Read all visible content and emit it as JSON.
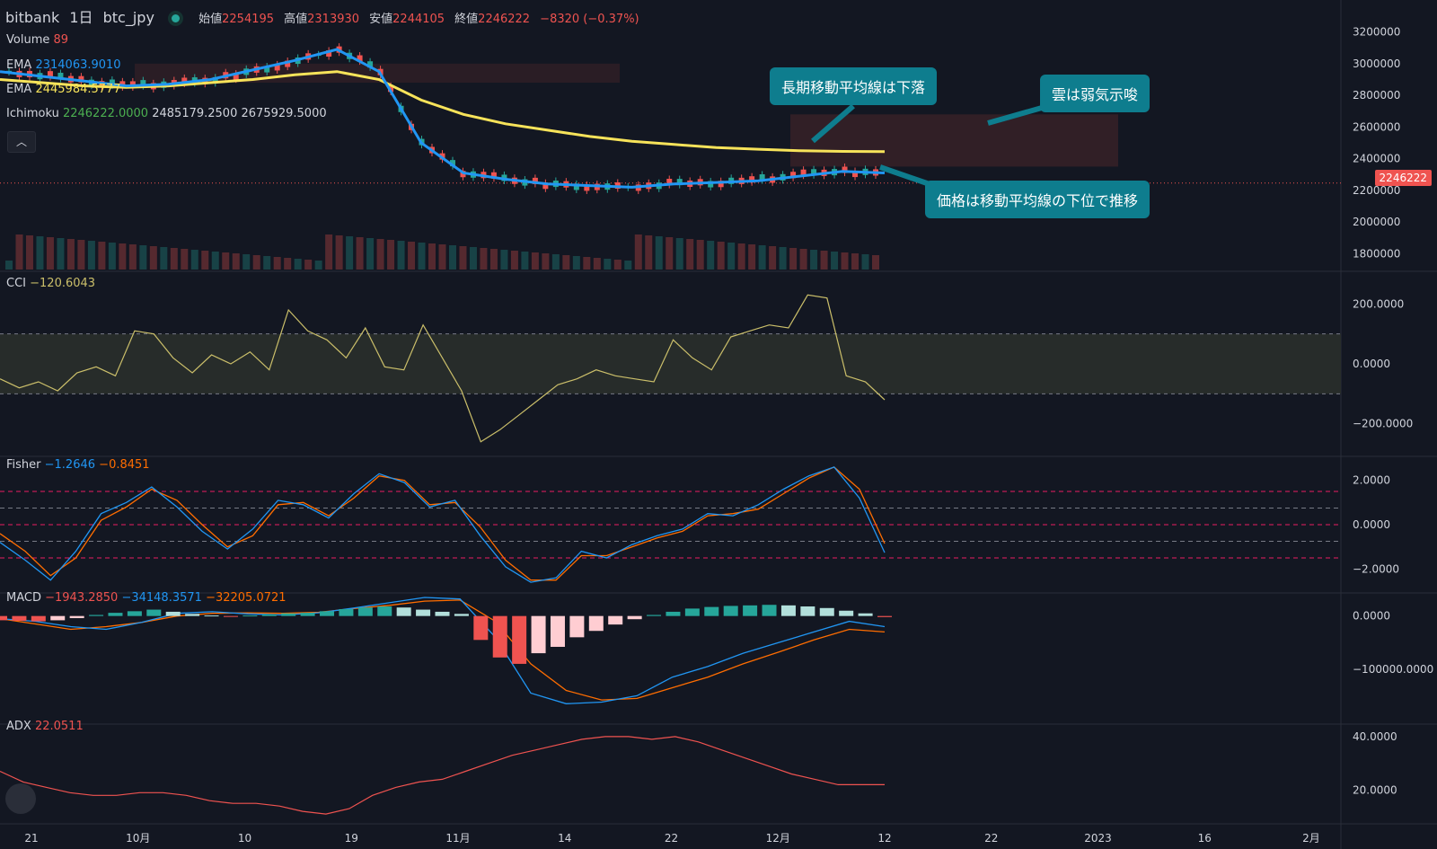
{
  "header": {
    "exchange": "bitbank",
    "interval": "1日",
    "symbol": "btc_jpy",
    "open_label": "始値",
    "open": "2254195",
    "high_label": "高値",
    "high": "2313930",
    "low_label": "安値",
    "low": "2244105",
    "close_label": "終値",
    "close": "2246222",
    "change": "−8320 (−0.37%)"
  },
  "legend": {
    "volume_label": "Volume",
    "volume": "89",
    "ema1_label": "EMA",
    "ema1": "2314063.9010",
    "ema2_label": "EMA",
    "ema2": "2445984.5777",
    "ichimoku_label": "Ichimoku",
    "ichi1": "2246222.0000",
    "ichi2": "2485179.2500",
    "ichi3": "2675929.5000",
    "cci_label": "CCI",
    "cci": "−120.6043",
    "fisher_label": "Fisher",
    "fisher1": "−1.2646",
    "fisher2": "−0.8451",
    "macd_label": "MACD",
    "macd1": "−1943.2850",
    "macd2": "−34148.3571",
    "macd3": "−32205.0721",
    "adx_label": "ADX",
    "adx": "22.0511"
  },
  "callouts": {
    "long_ma": "長期移動平均線は下落",
    "cloud": "雲は弱気示唆",
    "below": "価格は移動平均線の下位で推移"
  },
  "price_tag": "2246222",
  "collapse_icon": "chevron-up-icon",
  "colors": {
    "bg": "#131722",
    "up": "#26a69a",
    "down": "#ef5350",
    "ema_short": "#2196f3",
    "ema_long": "#f7e35a",
    "cloud": "#3a2228",
    "callout": "#0e7d8e",
    "cci": "#cbbf6a",
    "fisher_a": "#2196f3",
    "fisher_b": "#ff6d00",
    "adx": "#ef5350"
  },
  "chart_data": [
    {
      "type": "line",
      "title": "bitbank 1日 btc_jpy",
      "ylim": [
        1700000,
        3300000
      ],
      "y_ticks": [
        "3200000",
        "3000000",
        "2800000",
        "2600000",
        "2400000",
        "2200000",
        "2000000",
        "1800000"
      ],
      "x_ticks": [
        "21",
        "10月",
        "10",
        "19",
        "11月",
        "14",
        "22",
        "12月",
        "12",
        "22",
        "2023",
        "16",
        "2月"
      ],
      "series": [
        {
          "name": "EMA",
          "values": [
            2950000,
            2920000,
            2890000,
            2860000,
            2870000,
            2900000,
            2960000,
            3020000,
            3090000,
            2950000,
            2500000,
            2310000,
            2270000,
            2240000,
            2230000,
            2220000,
            2240000,
            2250000,
            2260000,
            2290000,
            2320000,
            2310000
          ]
        },
        {
          "name": "EMA",
          "values": [
            2900000,
            2880000,
            2860000,
            2850000,
            2860000,
            2880000,
            2900000,
            2930000,
            2950000,
            2900000,
            2770000,
            2680000,
            2620000,
            2580000,
            2540000,
            2510000,
            2490000,
            2470000,
            2460000,
            2450000,
            2446000,
            2445000
          ]
        }
      ]
    },
    {
      "type": "line",
      "title": "CCI",
      "ylim": [
        -300,
        300
      ],
      "y_ticks": [
        "200.0000",
        "0.0000",
        "−200.0000"
      ],
      "series": [
        {
          "name": "CCI",
          "values": [
            -50,
            -80,
            -60,
            -90,
            -30,
            -10,
            -40,
            110,
            100,
            20,
            -30,
            30,
            0,
            40,
            -20,
            180,
            110,
            80,
            20,
            120,
            -10,
            -20,
            130,
            20,
            -90,
            -260,
            -220,
            -170,
            -120,
            -70,
            -50,
            -20,
            -40,
            -50,
            -60,
            80,
            20,
            -20,
            90,
            110,
            130,
            120,
            230,
            220,
            -40,
            -60,
            -120
          ]
        }
      ]
    },
    {
      "type": "line",
      "title": "Fisher",
      "ylim": [
        -3,
        3
      ],
      "y_ticks": [
        "2.0000",
        "0.0000",
        "−2.0000"
      ],
      "series": [
        {
          "name": "Fisher",
          "values": [
            -0.8,
            -1.6,
            -2.5,
            -1.2,
            0.5,
            1.0,
            1.7,
            0.8,
            -0.3,
            -1.1,
            -0.2,
            1.1,
            0.9,
            0.3,
            1.4,
            2.3,
            1.9,
            0.8,
            1.1,
            -0.5,
            -1.9,
            -2.6,
            -2.4,
            -1.2,
            -1.5,
            -0.9,
            -0.5,
            -0.2,
            0.5,
            0.4,
            0.9,
            1.6,
            2.2,
            2.6,
            1.2,
            -1.26
          ]
        },
        {
          "name": "Fisher",
          "values": [
            -0.4,
            -1.2,
            -2.3,
            -1.5,
            0.2,
            0.8,
            1.6,
            1.1,
            0.0,
            -1.0,
            -0.5,
            0.9,
            1.0,
            0.4,
            1.2,
            2.2,
            2.0,
            0.9,
            1.0,
            -0.1,
            -1.6,
            -2.5,
            -2.5,
            -1.4,
            -1.4,
            -1.0,
            -0.6,
            -0.3,
            0.4,
            0.5,
            0.7,
            1.4,
            2.1,
            2.6,
            1.6,
            -0.85
          ]
        }
      ]
    },
    {
      "type": "bar",
      "title": "MACD",
      "ylim": [
        -200000,
        40000
      ],
      "y_ticks": [
        "0.0000",
        "−100000.0000"
      ],
      "values": [
        -8000,
        -9000,
        -10000,
        -8000,
        -4000,
        2000,
        6000,
        9000,
        12000,
        8000,
        4000,
        1000,
        -1000,
        1000,
        3000,
        5000,
        6000,
        9000,
        13000,
        16000,
        18000,
        16000,
        12000,
        8000,
        4000,
        -45000,
        -78000,
        -90000,
        -70000,
        -58000,
        -40000,
        -28000,
        -16000,
        -6000,
        2000,
        8000,
        14000,
        17000,
        19000,
        20000,
        21000,
        20000,
        18000,
        15000,
        10000,
        5000,
        -2000
      ]
    },
    {
      "type": "line",
      "title": "ADX",
      "ylim": [
        8,
        44
      ],
      "y_ticks": [
        "40.0000",
        "20.0000"
      ],
      "series": [
        {
          "name": "ADX",
          "values": [
            27,
            23,
            21,
            19,
            18,
            18,
            19,
            19,
            18,
            16,
            15,
            15,
            14,
            12,
            11,
            13,
            18,
            21,
            23,
            24,
            27,
            30,
            33,
            35,
            37,
            39,
            40,
            40,
            39,
            40,
            38,
            35,
            32,
            29,
            26,
            24,
            22,
            22,
            22
          ]
        }
      ]
    }
  ]
}
